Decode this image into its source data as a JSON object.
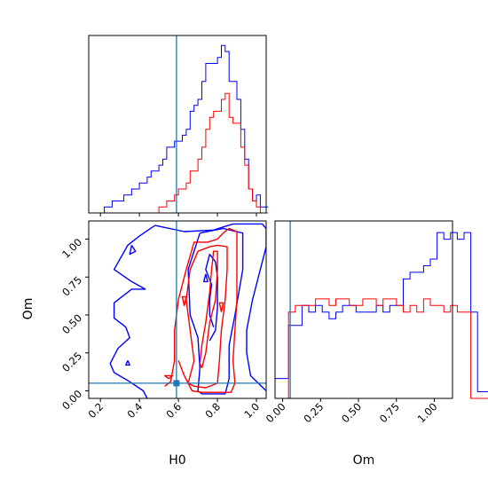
{
  "colors": {
    "blue": "#0000ff",
    "red": "#ff0000",
    "truth": "#1f77b4",
    "frame": "#000000"
  },
  "chart_data": {
    "type": "corner",
    "parameters": [
      "H0",
      "Om"
    ],
    "truth": {
      "H0": 0.59,
      "Om": 0.05
    },
    "axes": {
      "H0": {
        "xlabel": "H0",
        "range": [
          0.14,
          1.05
        ],
        "ticks": [
          "0.2",
          "0.4",
          "0.6",
          "0.8",
          "1.0"
        ],
        "tick_values": [
          0.2,
          0.4,
          0.6,
          0.8,
          1.0
        ]
      },
      "Om": {
        "ylabel": "Om",
        "xlabel": "Om",
        "range": [
          -0.05,
          1.12
        ],
        "ticks": [
          "0.00",
          "0.25",
          "0.50",
          "0.75",
          "1.00"
        ],
        "tick_values": [
          0.0,
          0.25,
          0.5,
          0.75,
          1.0
        ]
      }
    },
    "hist_H0": {
      "x_start": 0.14,
      "bin_width": 0.02,
      "series": [
        {
          "color": "blue",
          "values": [
            0,
            0,
            0,
            0,
            1,
            1,
            2,
            2,
            2,
            3,
            3,
            4,
            4,
            5,
            5,
            6,
            7,
            7,
            8,
            9,
            11,
            11,
            12,
            12,
            13,
            14,
            17,
            18,
            19,
            22,
            25,
            25,
            25,
            26,
            28,
            27,
            22,
            22,
            19,
            14,
            9,
            4,
            2,
            3,
            1,
            1
          ]
        },
        {
          "color": "red",
          "values": [
            0,
            0,
            0,
            0,
            0,
            0,
            0,
            0,
            0,
            0,
            0,
            0,
            0,
            0,
            0,
            0,
            0,
            0,
            1,
            1,
            2,
            2,
            3,
            4,
            4,
            5,
            7,
            7,
            9,
            11,
            14,
            16,
            17,
            17,
            19,
            20,
            16,
            15,
            15,
            11,
            8,
            4,
            2,
            1,
            0,
            0
          ]
        }
      ]
    },
    "hist_Om": {
      "x_start": -0.05,
      "bin_width": 0.0445,
      "series": [
        {
          "color": "blue",
          "values": [
            3,
            3,
            11,
            11,
            14,
            13,
            14,
            13,
            12,
            13,
            14,
            14,
            13,
            13,
            13,
            14,
            13,
            14,
            14,
            18,
            19,
            19,
            20,
            21,
            25,
            24,
            25,
            24,
            25,
            13,
            1,
            1,
            0
          ]
        },
        {
          "color": "red",
          "values": [
            0,
            0,
            13,
            14,
            14,
            14,
            15,
            15,
            14,
            15,
            15,
            14,
            14,
            15,
            15,
            14,
            15,
            15,
            14,
            13,
            14,
            13,
            15,
            14,
            14,
            13,
            14,
            13,
            13,
            0,
            0,
            0,
            0
          ]
        }
      ]
    },
    "contours": [
      {
        "color": "blue",
        "paths": [
          [
            [
              0.48,
              1.09
            ],
            [
              0.63,
              1.05
            ],
            [
              0.78,
              1.06
            ],
            [
              0.88,
              1.1
            ],
            [
              1.03,
              1.1
            ],
            [
              1.05,
              1.07
            ],
            [
              1.05,
              0.95
            ],
            [
              1.02,
              0.8
            ],
            [
              0.98,
              0.6
            ],
            [
              0.95,
              0.4
            ],
            [
              0.95,
              0.25
            ],
            [
              0.97,
              0.1
            ],
            [
              1.05,
              0.0
            ]
          ],
          [
            [
              0.48,
              1.09
            ],
            [
              0.4,
              1.02
            ],
            [
              0.34,
              0.96
            ],
            [
              0.27,
              0.8
            ],
            [
              0.36,
              0.72
            ],
            [
              0.43,
              0.67
            ],
            [
              0.36,
              0.67
            ],
            [
              0.27,
              0.58
            ],
            [
              0.27,
              0.48
            ],
            [
              0.33,
              0.42
            ],
            [
              0.35,
              0.35
            ],
            [
              0.29,
              0.28
            ],
            [
              0.25,
              0.18
            ],
            [
              0.27,
              0.12
            ],
            [
              0.35,
              0.06
            ],
            [
              0.42,
              0.0
            ],
            [
              0.44,
              -0.05
            ]
          ],
          [
            [
              0.71,
              1.04
            ],
            [
              0.65,
              0.8
            ],
            [
              0.66,
              0.5
            ],
            [
              0.7,
              0.35
            ],
            [
              0.71,
              0.15
            ],
            [
              0.7,
              0.0
            ],
            [
              0.72,
              -0.02
            ],
            [
              0.84,
              -0.02
            ],
            [
              0.86,
              0.08
            ],
            [
              0.86,
              0.3
            ],
            [
              0.89,
              0.5
            ],
            [
              0.93,
              0.8
            ],
            [
              0.93,
              1.04
            ],
            [
              0.83,
              1.07
            ],
            [
              0.71,
              1.04
            ]
          ],
          [
            [
              0.76,
              0.33
            ],
            [
              0.79,
              0.4
            ],
            [
              0.8,
              0.55
            ],
            [
              0.8,
              0.75
            ],
            [
              0.79,
              0.85
            ],
            [
              0.76,
              0.9
            ],
            [
              0.74,
              0.8
            ],
            [
              0.77,
              0.7
            ],
            [
              0.76,
              0.6
            ],
            [
              0.76,
              0.5
            ],
            [
              0.78,
              0.42
            ]
          ],
          [
            [
              0.36,
              0.96
            ],
            [
              0.38,
              0.92
            ],
            [
              0.35,
              0.9
            ],
            [
              0.36,
              0.96
            ]
          ],
          [
            [
              0.74,
              0.77
            ],
            [
              0.75,
              0.72
            ],
            [
              0.73,
              0.72
            ],
            [
              0.74,
              0.77
            ]
          ],
          [
            [
              0.34,
              0.2
            ],
            [
              0.35,
              0.17
            ],
            [
              0.33,
              0.17
            ],
            [
              0.34,
              0.2
            ]
          ]
        ]
      },
      {
        "color": "red",
        "paths": [
          [
            [
              0.53,
              0.03
            ],
            [
              0.56,
              0.06
            ],
            [
              0.58,
              0.2
            ],
            [
              0.58,
              0.4
            ],
            [
              0.6,
              0.6
            ],
            [
              0.64,
              0.8
            ],
            [
              0.68,
              0.98
            ],
            [
              0.75,
              0.98
            ],
            [
              0.8,
              1.0
            ],
            [
              0.83,
              1.04
            ],
            [
              0.86,
              1.07
            ],
            [
              0.9,
              1.05
            ],
            [
              0.9,
              0.9
            ],
            [
              0.9,
              0.6
            ],
            [
              0.89,
              0.4
            ],
            [
              0.88,
              0.2
            ],
            [
              0.89,
              0.05
            ],
            [
              0.87,
              -0.01
            ],
            [
              0.72,
              -0.01
            ],
            [
              0.67,
              0.0
            ],
            [
              0.63,
              0.1
            ],
            [
              0.6,
              0.2
            ]
          ],
          [
            [
              0.65,
              0.05
            ],
            [
              0.68,
              0.2
            ],
            [
              0.66,
              0.4
            ],
            [
              0.64,
              0.6
            ],
            [
              0.66,
              0.8
            ],
            [
              0.7,
              0.92
            ],
            [
              0.76,
              0.95
            ],
            [
              0.8,
              0.96
            ],
            [
              0.85,
              0.95
            ],
            [
              0.85,
              0.8
            ],
            [
              0.84,
              0.6
            ],
            [
              0.82,
              0.4
            ],
            [
              0.81,
              0.2
            ],
            [
              0.8,
              0.05
            ],
            [
              0.74,
              0.02
            ],
            [
              0.68,
              0.03
            ],
            [
              0.65,
              0.05
            ]
          ],
          [
            [
              0.72,
              0.15
            ],
            [
              0.74,
              0.25
            ],
            [
              0.76,
              0.45
            ],
            [
              0.79,
              0.6
            ],
            [
              0.8,
              0.8
            ],
            [
              0.8,
              0.92
            ],
            [
              0.78,
              0.92
            ],
            [
              0.77,
              0.8
            ],
            [
              0.76,
              0.65
            ],
            [
              0.74,
              0.45
            ],
            [
              0.72,
              0.3
            ],
            [
              0.71,
              0.18
            ],
            [
              0.72,
              0.15
            ]
          ],
          [
            [
              0.63,
              0.56
            ],
            [
              0.64,
              0.62
            ],
            [
              0.62,
              0.62
            ],
            [
              0.63,
              0.56
            ]
          ],
          [
            [
              0.82,
              0.52
            ],
            [
              0.83,
              0.58
            ],
            [
              0.81,
              0.58
            ],
            [
              0.82,
              0.52
            ]
          ],
          [
            [
              0.55,
              0.08
            ],
            [
              0.57,
              0.1
            ],
            [
              0.53,
              0.1
            ],
            [
              0.55,
              0.08
            ]
          ]
        ]
      }
    ]
  }
}
